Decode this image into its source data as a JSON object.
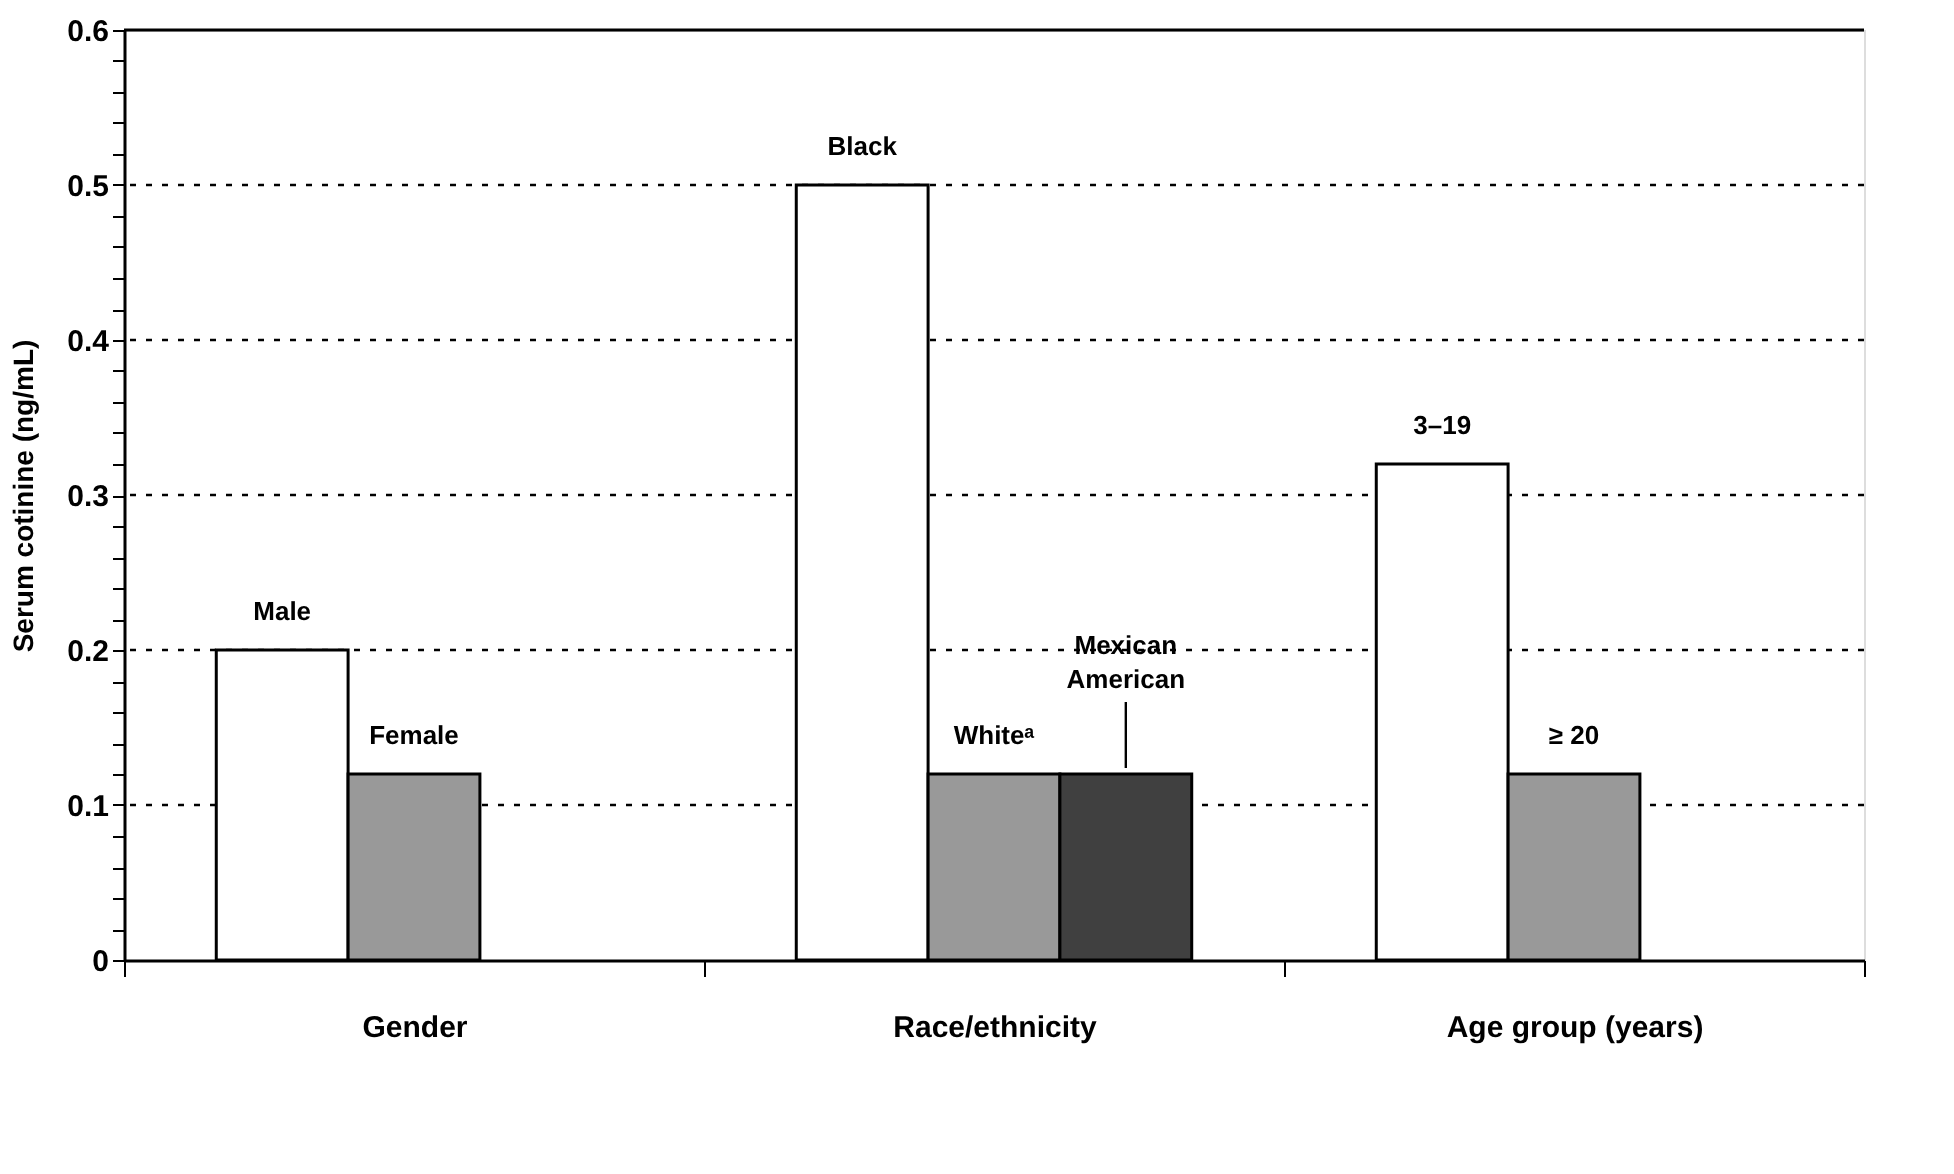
{
  "chart_data": {
    "type": "bar",
    "ylabel": "Serum cotinine (ng/mL)",
    "categories": [
      "Gender",
      "Race/ethnicity",
      "Age group (years)"
    ],
    "series": [
      {
        "color": "#ffffff",
        "values": [
          0.2,
          0.5,
          0.32
        ]
      },
      {
        "color": "#999999",
        "values": [
          0.12,
          0.12,
          0.12
        ]
      },
      {
        "color": "#404040",
        "values": [
          null,
          0.12,
          null
        ]
      }
    ],
    "annotations": [
      "Male",
      "Female",
      "Black",
      "Whiteᵃ",
      {
        "text": "Mexican\nAmerican",
        "y": 0.12
      },
      "3–19",
      "≥ 20"
    ],
    "ylim": [
      0,
      0.6
    ],
    "yticks": [
      0,
      {
        "value": 0.02,
        "label": null
      },
      {
        "value": 0.04,
        "label": null
      },
      {
        "value": 0.06,
        "label": null
      },
      {
        "value": 0.08,
        "label": null
      },
      0.1,
      {
        "value": 0.12,
        "label": null
      },
      {
        "value": 0.14,
        "label": null
      },
      {
        "value": 0.16,
        "label": null
      },
      {
        "value": 0.18,
        "label": null
      },
      0.2,
      {
        "value": 0.22,
        "label": null
      },
      {
        "value": 0.24,
        "label": null
      },
      {
        "value": 0.26,
        "label": null
      },
      {
        "value": 0.28,
        "label": null
      },
      0.3,
      {
        "value": 0.32,
        "label": null
      },
      {
        "value": 0.34,
        "label": null
      },
      {
        "value": 0.36,
        "label": null
      },
      {
        "value": 0.38,
        "label": null
      },
      0.4,
      {
        "value": 0.42,
        "label": null
      },
      {
        "value": 0.44,
        "label": null
      },
      {
        "value": 0.46,
        "label": null
      },
      {
        "value": 0.48,
        "label": null
      },
      0.5,
      {
        "value": 0.52,
        "label": null
      },
      {
        "value": 0.54,
        "label": null
      },
      {
        "value": 0.56,
        "label": null
      },
      {
        "value": 0.58,
        "label": null
      },
      0.6
    ],
    "grid": "y",
    "legend": false
  }
}
